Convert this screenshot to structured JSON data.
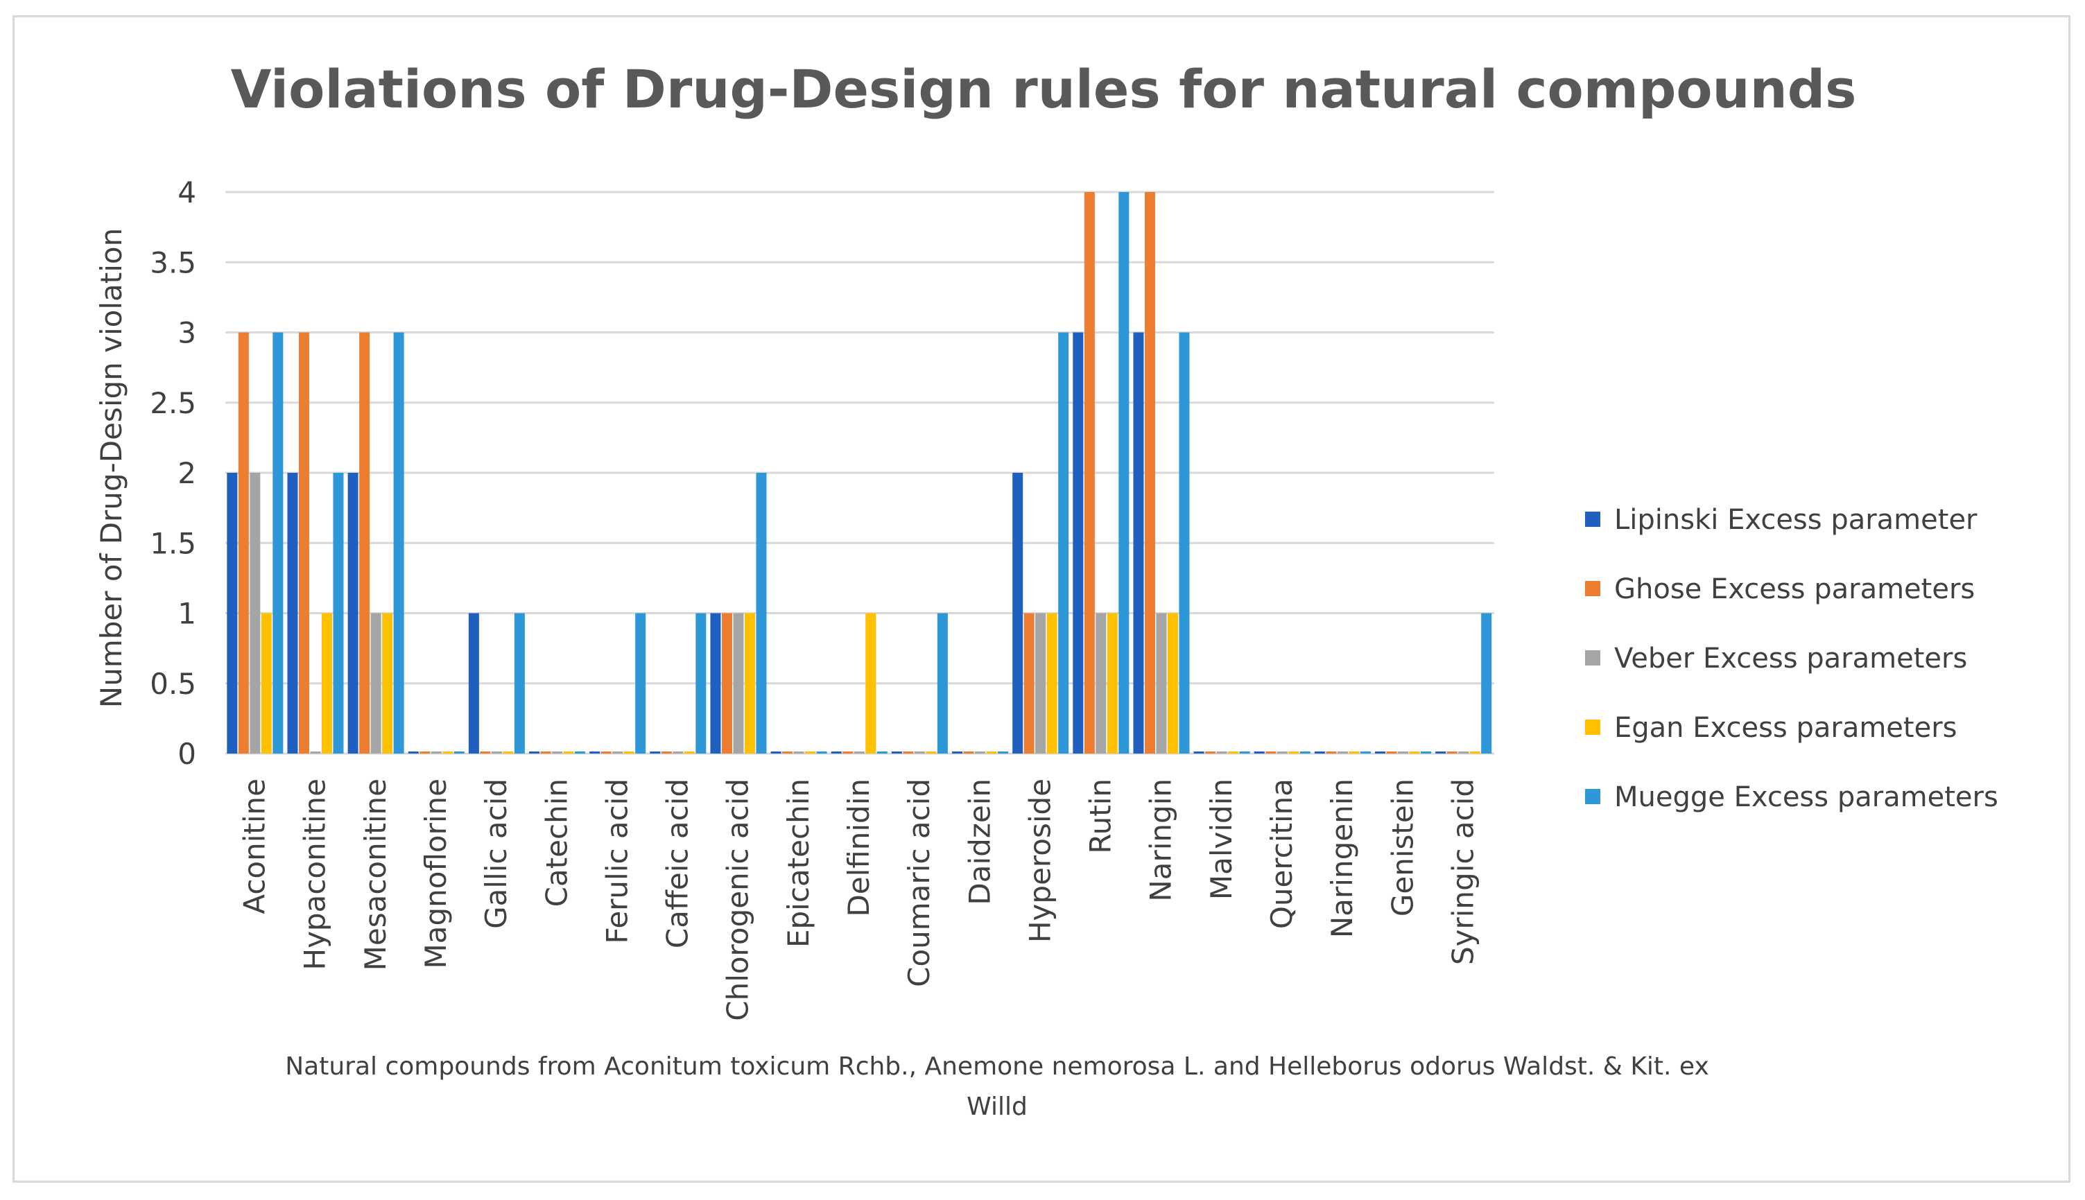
{
  "chart_data": {
    "type": "bar",
    "title": "Violations of Drug-Design rules for natural compounds",
    "ylabel": "Number of Drug-Design violation",
    "xlabel_line1": "Natural compounds from Aconitum toxicum Rchb., Anemone nemorosa L. and Helleborus odorus Waldst. & Kit. ex",
    "xlabel_line2": "Willd",
    "ylim": [
      0,
      4
    ],
    "yticks": [
      "0",
      "0.5",
      "1",
      "1.5",
      "2",
      "2.5",
      "3",
      "3.5",
      "4"
    ],
    "grid": true,
    "legend_position": "right",
    "categories": [
      "Aconitine",
      "Hypaconitine",
      "Mesaconitine",
      "Magnoflorine",
      "Gallic acid",
      "Catechin",
      "Ferulic acid",
      "Caffeic acid",
      "Chlorogenic acid",
      "Epicatechin",
      "Delfinidin",
      "Coumaric acid",
      "Daidzein",
      "Hyperoside",
      "Rutin",
      "Naringin",
      "Malvidin",
      "Quercitina",
      "Naringenin",
      "Genistein",
      "Syringic acid"
    ],
    "series": [
      {
        "name": "Lipinski  Excess parameter",
        "color": "#1f5fbf",
        "values": [
          2,
          2,
          2,
          0,
          1,
          0,
          0,
          0,
          1,
          0,
          0,
          0,
          0,
          2,
          3,
          3,
          0,
          0,
          0,
          0,
          0
        ]
      },
      {
        "name": "Ghose   Excess parameters",
        "color": "#ed7d31",
        "values": [
          3,
          3,
          3,
          0,
          0,
          0,
          0,
          0,
          1,
          0,
          0,
          0,
          0,
          1,
          4,
          4,
          0,
          0,
          0,
          0,
          0
        ]
      },
      {
        "name": "Veber  Excess parameters",
        "color": "#a5a5a5",
        "values": [
          2,
          0,
          1,
          0,
          0,
          0,
          0,
          0,
          1,
          0,
          0,
          0,
          0,
          1,
          1,
          1,
          0,
          0,
          0,
          0,
          0
        ]
      },
      {
        "name": "Egan  Excess parameters",
        "color": "#ffc000",
        "values": [
          1,
          1,
          1,
          0,
          0,
          0,
          0,
          0,
          1,
          0,
          1,
          0,
          0,
          1,
          1,
          1,
          0,
          0,
          0,
          0,
          0
        ]
      },
      {
        "name": "Muegge  Excess parameters",
        "color": "#2e97d8",
        "values": [
          3,
          2,
          3,
          0,
          1,
          0,
          1,
          1,
          2,
          0,
          0,
          1,
          0,
          3,
          4,
          3,
          0,
          0,
          0,
          0,
          1
        ]
      }
    ]
  }
}
